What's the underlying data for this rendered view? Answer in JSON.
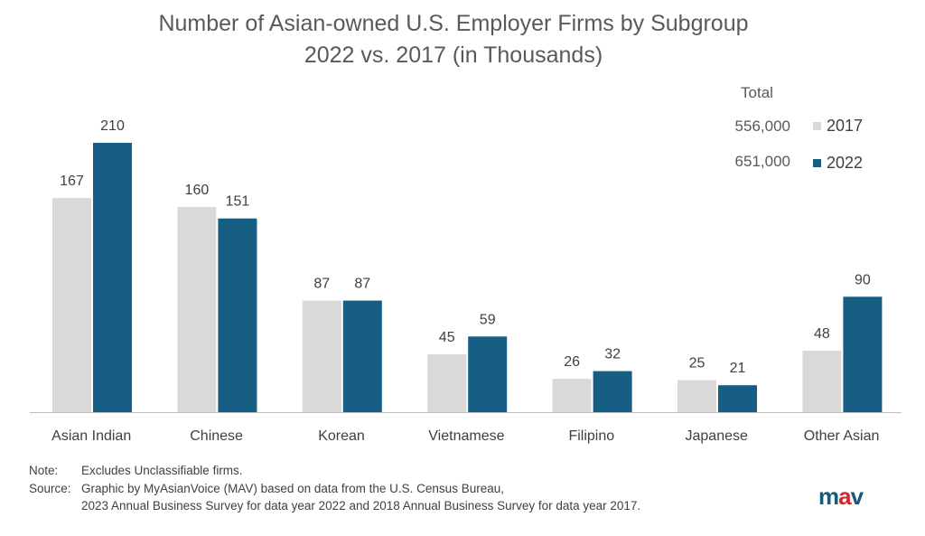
{
  "chart_data": {
    "type": "bar",
    "title": "Number of Asian-owned U.S. Employer Firms by Subgroup",
    "subtitle": "2022 vs. 2017 (in Thousands)",
    "categories": [
      "Asian Indian",
      "Chinese",
      "Korean",
      "Vietnamese",
      "Filipino",
      "Japanese",
      "Other Asian"
    ],
    "series": [
      {
        "name": "2017",
        "values": [
          167,
          160,
          87,
          45,
          26,
          25,
          48
        ],
        "color": "#d9d9d9"
      },
      {
        "name": "2022",
        "values": [
          210,
          151,
          87,
          59,
          32,
          21,
          90
        ],
        "color": "#165e83"
      }
    ],
    "ylim": [
      0,
      210
    ],
    "grid": false,
    "legend": {
      "placement": "top-right",
      "header": "Total",
      "totals": [
        "556,000",
        "651,000"
      ]
    }
  },
  "notes": {
    "note_label": "Note:",
    "note_text": "Excludes Unclassifiable firms.",
    "source_label": "Source:",
    "source_text": "Graphic by MyAsianVoice (MAV) based on data from the U.S. Census Bureau,",
    "source_text_2": "2023 Annual Business Survey for data year 2022 and 2018 Annual Business Survey for data year 2017."
  },
  "logo": {
    "m": "m",
    "a": "a",
    "v": "v"
  }
}
